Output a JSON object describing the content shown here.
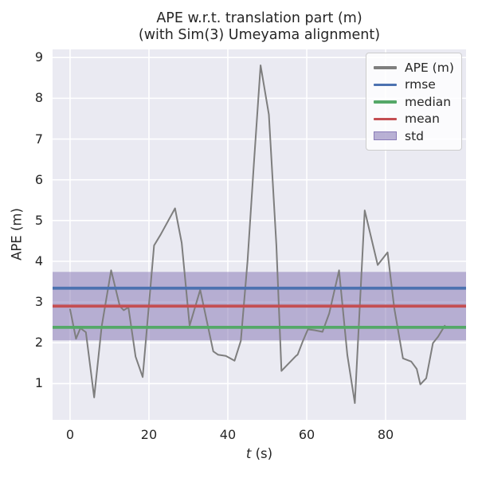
{
  "title": {
    "line1": "APE w.r.t. translation part (m)",
    "line2": "(with Sim(3) Umeyama alignment)"
  },
  "axes": {
    "y_label": "APE (m)",
    "x_label_italic": "t",
    "x_label_rest": " (s)",
    "x_tick_labels": [
      "0",
      "20",
      "40",
      "60",
      "80"
    ],
    "y_tick_labels": [
      "1",
      "2",
      "3",
      "4",
      "5",
      "6",
      "7",
      "8",
      "9"
    ]
  },
  "legend": {
    "position": "upper right",
    "items": [
      {
        "label": "APE (m)",
        "color": "#7e7e7e",
        "type": "line"
      },
      {
        "label": "rmse",
        "color": "#4c72b0",
        "type": "line"
      },
      {
        "label": "median",
        "color": "#55a868",
        "type": "line"
      },
      {
        "label": "mean",
        "color": "#c44e52",
        "type": "line"
      },
      {
        "label": "std",
        "color": "#8172b2",
        "type": "patch"
      }
    ]
  },
  "colors": {
    "figure_bg": "#ffffff",
    "axes_bg": "#eaeaf2",
    "grid": "#ffffff",
    "text": "#262626",
    "ape_line": "#7e7e7e",
    "rmse": "#4c72b0",
    "median": "#55a868",
    "mean": "#c44e52",
    "std_fill": "#8172b2"
  },
  "chart_data": {
    "type": "line",
    "title": "APE w.r.t. translation part (m) (with Sim(3) Umeyama alignment)",
    "xlabel": "t (s)",
    "ylabel": "APE (m)",
    "xlim": [
      -4.44,
      100.4
    ],
    "ylim": [
      0.11,
      9.2
    ],
    "x_ticks": [
      0,
      20,
      40,
      60,
      80
    ],
    "y_ticks": [
      1,
      2,
      3,
      4,
      5,
      6,
      7,
      8,
      9
    ],
    "grid": true,
    "legend_position": "upper right",
    "series": [
      {
        "name": "APE (m)",
        "color": "#7e7e7e",
        "x": [
          0,
          1.5,
          2.6,
          4,
          6.1,
          8,
          10.4,
          12.6,
          13.6,
          14.8,
          16.6,
          18.4,
          21.3,
          23,
          26.6,
          28.3,
          30.3,
          33,
          36.3,
          37.5,
          39.5,
          41.7,
          43.3,
          45,
          46.6,
          48.3,
          50.4,
          52.3,
          53.6,
          57.3,
          57.7,
          59,
          60.3,
          62,
          64,
          65.7,
          68.2,
          70.3,
          72.2,
          74.7,
          78,
          80.5,
          82.2,
          84.4,
          86.5,
          87.9,
          88.8,
          90.3,
          92,
          93.3,
          95
        ],
        "y": [
          2.82,
          2.1,
          2.36,
          2.26,
          0.66,
          2.4,
          3.78,
          2.9,
          2.8,
          2.87,
          1.66,
          1.16,
          4.39,
          4.66,
          5.3,
          4.45,
          2.42,
          3.3,
          1.79,
          1.71,
          1.68,
          1.56,
          2.05,
          4.0,
          6.4,
          8.81,
          7.6,
          4.4,
          1.31,
          1.68,
          1.71,
          2.04,
          2.33,
          2.31,
          2.27,
          2.72,
          3.78,
          1.7,
          0.52,
          5.25,
          3.91,
          4.22,
          2.85,
          1.62,
          1.54,
          1.36,
          0.98,
          1.13,
          1.99,
          2.15,
          2.42
        ]
      }
    ],
    "stat_lines": [
      {
        "name": "rmse",
        "value": 3.34,
        "color": "#4c72b0"
      },
      {
        "name": "median",
        "value": 2.38,
        "color": "#55a868"
      },
      {
        "name": "mean",
        "value": 2.9,
        "color": "#c44e52"
      }
    ],
    "std_band": {
      "name": "std",
      "low": 2.06,
      "high": 3.74,
      "mean": 2.9,
      "std": 0.84,
      "color": "#8172b2",
      "opacity": 0.5
    }
  }
}
